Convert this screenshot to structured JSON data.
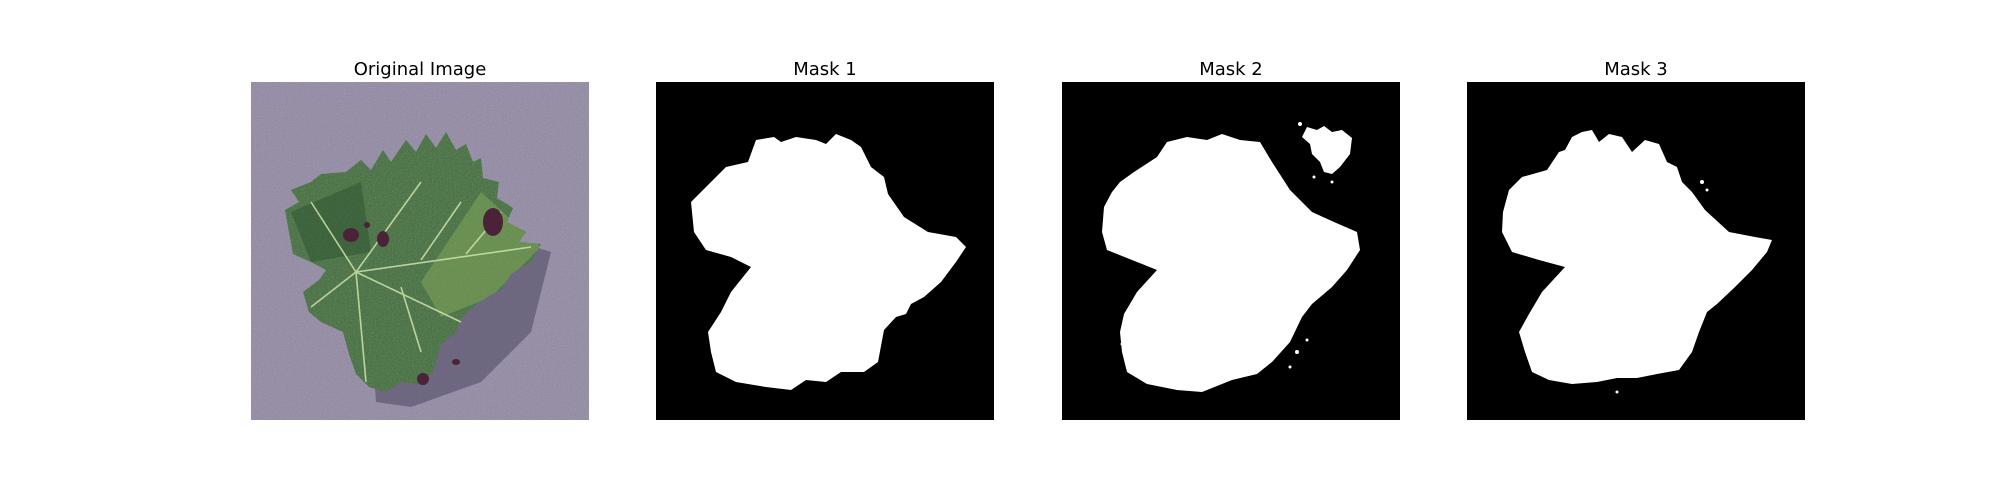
{
  "figure": {
    "panels": [
      {
        "title": "Original Image",
        "content": "leaf photograph on purple textured background"
      },
      {
        "title": "Mask 1",
        "content": "binary segmentation mask"
      },
      {
        "title": "Mask 2",
        "content": "binary segmentation mask"
      },
      {
        "title": "Mask 3",
        "content": "binary segmentation mask"
      }
    ]
  },
  "colors": {
    "page_background": "#ffffff",
    "mask_foreground": "#ffffff",
    "mask_background": "#000000",
    "photo_background": "#8f86a2",
    "leaf_green": "#3f6b39",
    "lesion_color": "#4a2338"
  }
}
